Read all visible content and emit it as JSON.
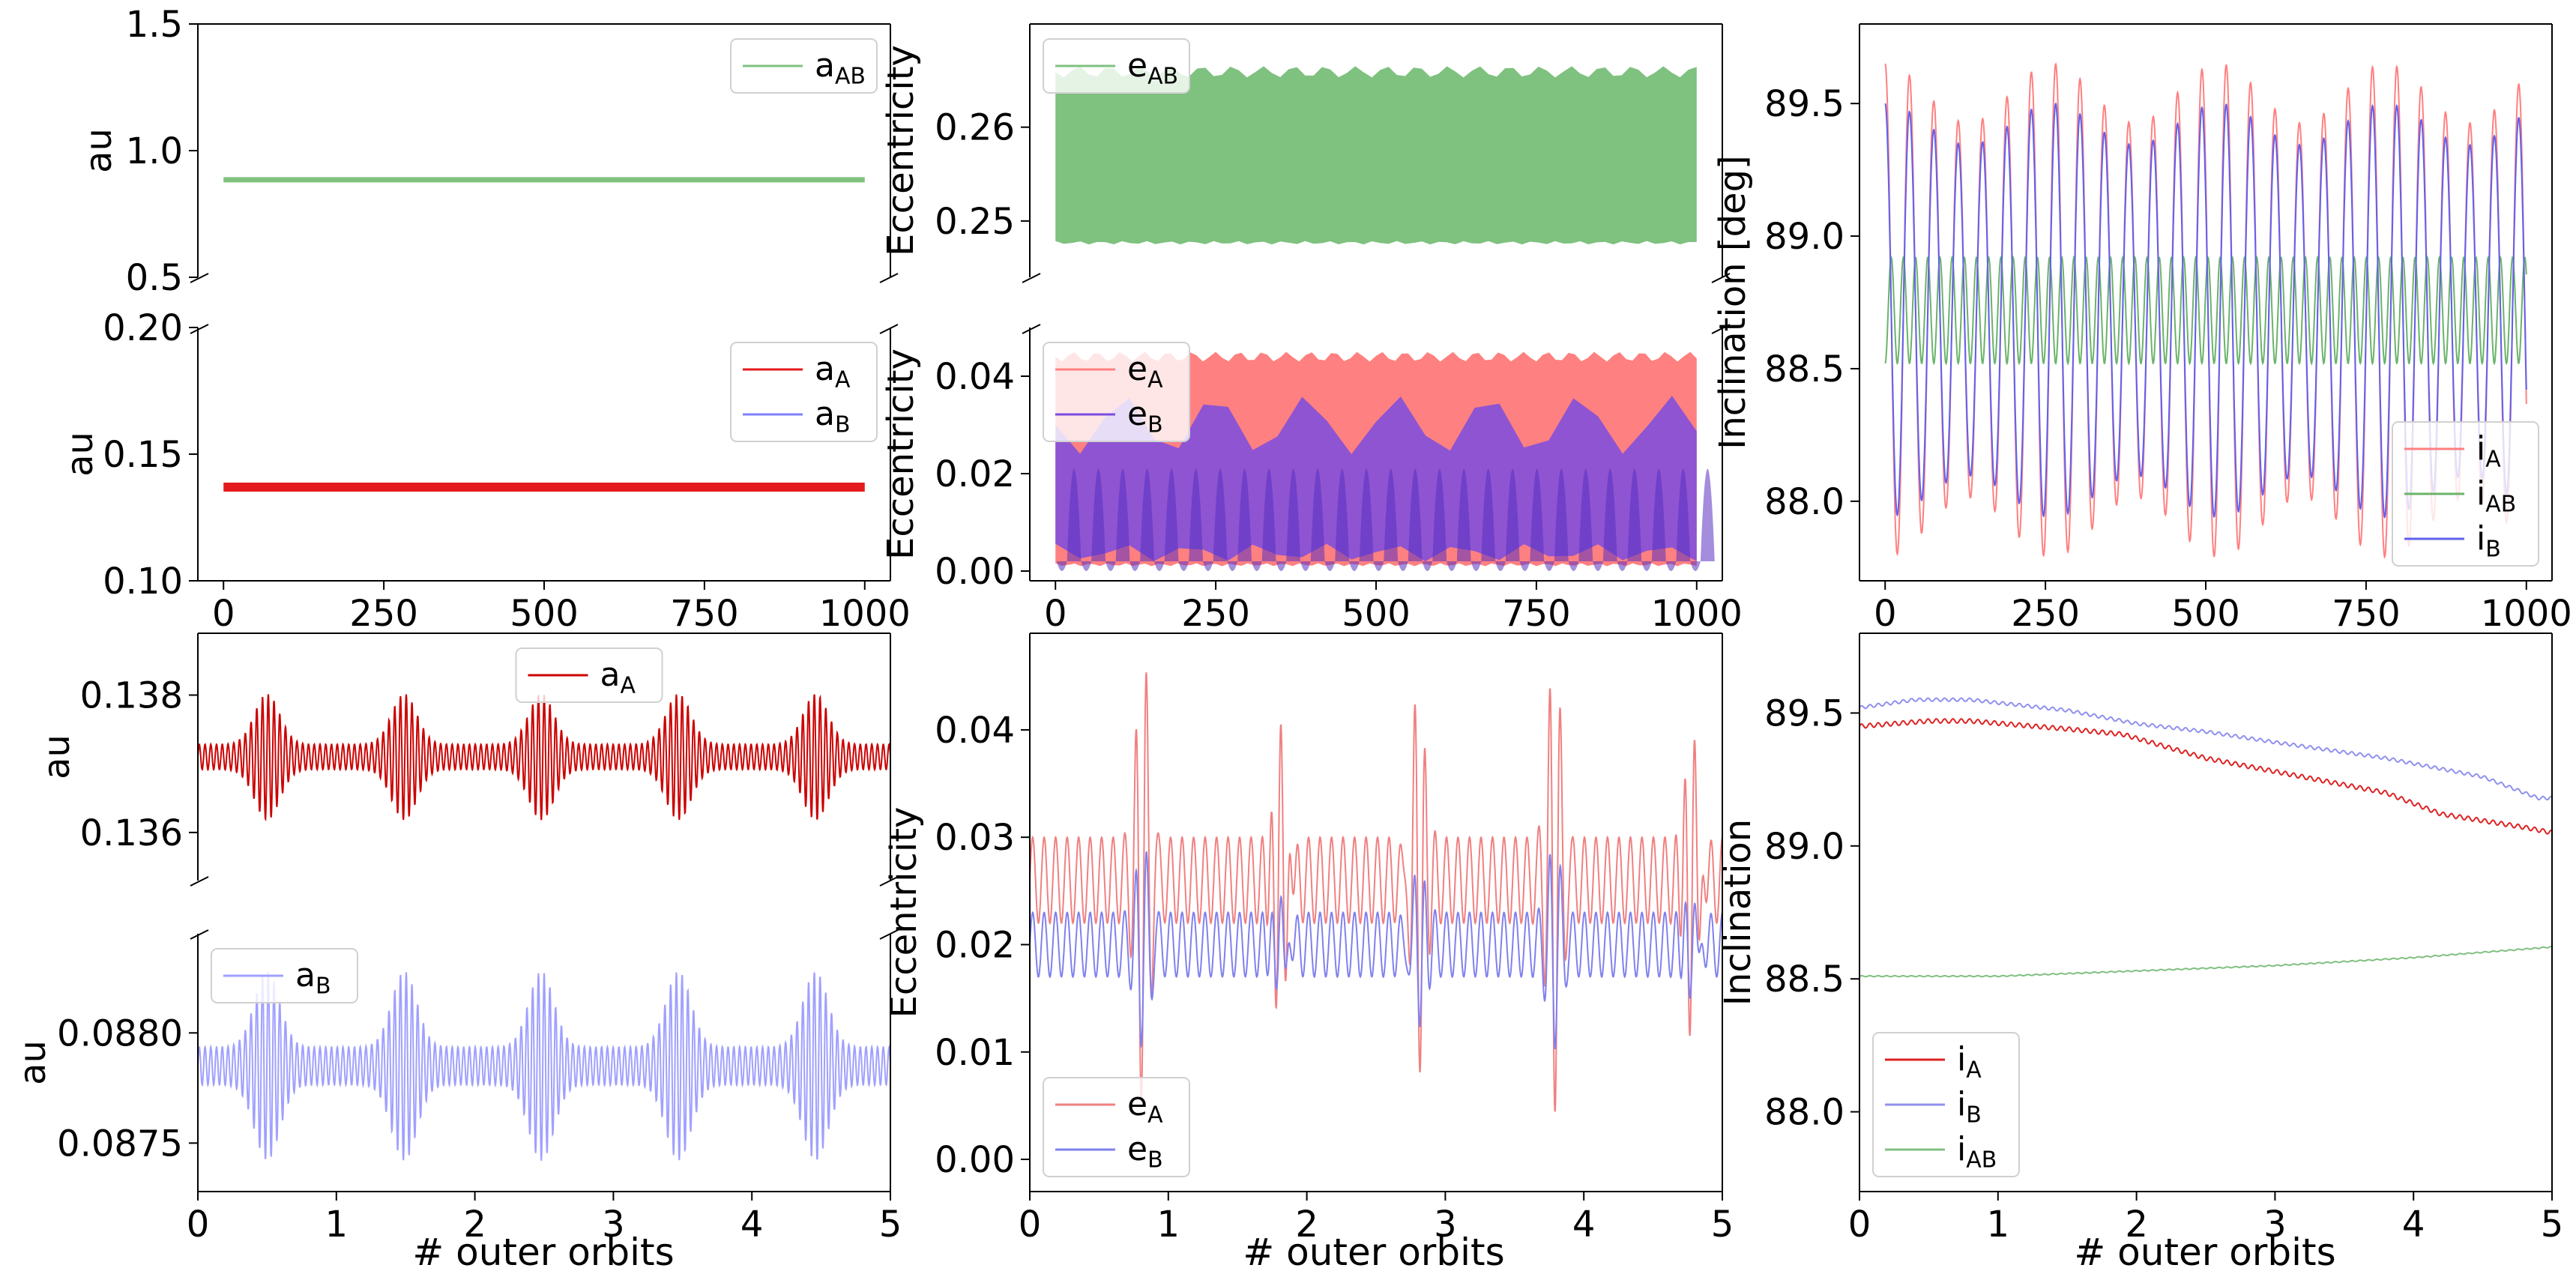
{
  "figure": {
    "xlabel": "# outer orbits"
  },
  "chart_data": [
    {
      "id": "a-top",
      "type": "line",
      "ylabel": "au",
      "xlim": [
        -40,
        1040
      ],
      "ylim": [
        0.5,
        1.5
      ],
      "yticks": [
        "0.5",
        "1.0",
        "1.5"
      ],
      "ytick_values": [
        0.5,
        1.0,
        1.5
      ],
      "xticks": [],
      "xtick_values": [],
      "series": [
        {
          "name": "a",
          "sub": "AB",
          "color": "#7fc17f",
          "x": [
            0,
            1000
          ],
          "y": [
            0.885,
            0.885
          ]
        }
      ],
      "legend": {
        "loc": "top-right"
      }
    },
    {
      "id": "a-bottom",
      "type": "line",
      "ylabel": "au",
      "xlim": [
        -40,
        1040
      ],
      "ylim": [
        0.1,
        0.2
      ],
      "yticks": [
        "0.10",
        "0.15",
        "0.20"
      ],
      "ytick_values": [
        0.1,
        0.15,
        0.2
      ],
      "xticks": [
        "0",
        "250",
        "500",
        "750",
        "1000"
      ],
      "xtick_values": [
        0,
        250,
        500,
        750,
        1000
      ],
      "series": [
        {
          "name": "a",
          "sub": "A",
          "color": "#e41a1c",
          "x": [
            0,
            1000
          ],
          "y": [
            0.137,
            0.137
          ]
        },
        {
          "name": "a",
          "sub": "B",
          "color": "#8080ff",
          "x": [],
          "y": []
        }
      ],
      "legend": {
        "loc": "top-right"
      }
    },
    {
      "id": "e-top",
      "type": "band",
      "ylabel": "Eccentricity",
      "xlim": [
        -40,
        1040
      ],
      "ylim": [
        0.244,
        0.271
      ],
      "yticks": [
        "0.25",
        "0.26"
      ],
      "ytick_values": [
        0.25,
        0.26
      ],
      "xticks": [],
      "xtick_values": [],
      "series": [
        {
          "name": "e",
          "sub": "AB",
          "color": "#7fc17f",
          "range": [
            0,
            1000
          ],
          "low": 0.2475,
          "high": 0.2665,
          "period": 13,
          "wobble": 0.0012
        }
      ],
      "legend": {
        "loc": "top-left"
      }
    },
    {
      "id": "e-bottom",
      "type": "band",
      "ylabel": "Eccentricity",
      "xlim": [
        -40,
        1040
      ],
      "ylim": [
        -0.002,
        0.05
      ],
      "yticks": [
        "0.00",
        "0.02",
        "0.04"
      ],
      "ytick_values": [
        0.0,
        0.02,
        0.04
      ],
      "xticks": [
        "0",
        "250",
        "500",
        "750",
        "1000"
      ],
      "xtick_values": [
        0,
        250,
        500,
        750,
        1000
      ],
      "series": [
        {
          "name": "e",
          "sub": "A",
          "color": "#ff8080",
          "range": [
            0,
            1000
          ],
          "low": 0.001,
          "high": 0.045,
          "period": 10,
          "wobble": 0.002
        },
        {
          "name": "e",
          "sub": "B",
          "color": "#7a4ce0",
          "range": [
            0,
            1000
          ],
          "low": 0.002,
          "high": 0.036,
          "period": 38,
          "wobble": 0.012
        }
      ],
      "legend": {
        "loc": "top-left"
      }
    },
    {
      "id": "incl-full",
      "type": "line",
      "ylabel": "Inclination [deg]",
      "xlim": [
        -40,
        1040
      ],
      "ylim": [
        87.7,
        89.8
      ],
      "yticks": [
        "88.0",
        "88.5",
        "89.0",
        "89.5"
      ],
      "ytick_values": [
        88.0,
        88.5,
        89.0,
        89.5
      ],
      "xticks": [
        "0",
        "250",
        "500",
        "750",
        "1000"
      ],
      "xtick_values": [
        0,
        250,
        500,
        750,
        1000
      ],
      "series": [
        {
          "name": "i",
          "sub": "A",
          "color": "#ff8080",
          "gen": {
            "kind": "osc",
            "x0": 0,
            "x1": 1000,
            "center": 88.72,
            "amp": 0.93,
            "period": 38,
            "beat": 260,
            "depth": 0.12,
            "phase": 1.57
          }
        },
        {
          "name": "i",
          "sub": "AB",
          "color": "#6ab36a",
          "gen": {
            "kind": "osc",
            "x0": 0,
            "x1": 1000,
            "center": 88.72,
            "amp": 0.2,
            "period": 19,
            "beat": 0,
            "depth": 0,
            "phase": -1.57
          }
        },
        {
          "name": "i",
          "sub": "B",
          "color": "#6060ee",
          "gen": {
            "kind": "osc",
            "x0": 0,
            "x1": 1000,
            "center": 88.72,
            "amp": 0.78,
            "period": 38,
            "beat": 260,
            "depth": 0.1,
            "phase": 1.57
          }
        }
      ],
      "legend": {
        "loc": "bottom-right"
      }
    },
    {
      "id": "aA-zoom",
      "type": "line",
      "ylabel": "au",
      "xlim": [
        0,
        5
      ],
      "ylim": [
        0.1353,
        0.1389
      ],
      "yticks": [
        "0.136",
        "0.138"
      ],
      "ytick_values": [
        0.136,
        0.138
      ],
      "xticks": [],
      "xtick_values": [],
      "series": [
        {
          "name": "a",
          "sub": "A",
          "color": "#cc0000",
          "gen": {
            "kind": "beat",
            "x0": 0,
            "x1": 5,
            "center": 0.1371,
            "amp": 0.00092,
            "period": 0.0415,
            "beat": 0.99,
            "floor": 0.2,
            "phase": 0.5
          }
        }
      ],
      "legend": {
        "loc": "top-center"
      }
    },
    {
      "id": "aB-zoom",
      "type": "line",
      "ylabel": "au",
      "xlim": [
        0,
        5
      ],
      "ylim": [
        0.08728,
        0.08845
      ],
      "yticks": [
        "0.0875",
        "0.0880"
      ],
      "ytick_values": [
        0.0875,
        0.088
      ],
      "xticks": [
        "0",
        "1",
        "2",
        "3",
        "4",
        "5"
      ],
      "xtick_values": [
        0,
        1,
        2,
        3,
        4,
        5
      ],
      "series": [
        {
          "name": "a",
          "sub": "B",
          "color": "#a0a0ff",
          "gen": {
            "kind": "beat",
            "x0": 0,
            "x1": 5,
            "center": 0.08785,
            "amp": 0.00043,
            "period": 0.0415,
            "beat": 0.99,
            "floor": 0.2,
            "phase": 0.5
          }
        }
      ],
      "legend": {
        "loc": "top-left"
      }
    },
    {
      "id": "e-zoom",
      "type": "line",
      "ylabel": "Eccentricity",
      "xlim": [
        0,
        5
      ],
      "ylim": [
        -0.003,
        0.049
      ],
      "yticks": [
        "0.00",
        "0.01",
        "0.02",
        "0.03",
        "0.04"
      ],
      "ytick_values": [
        0.0,
        0.01,
        0.02,
        0.03,
        0.04
      ],
      "xticks": [
        "0",
        "1",
        "2",
        "3",
        "4",
        "5"
      ],
      "xtick_values": [
        0,
        1,
        2,
        3,
        4,
        5
      ],
      "series": [
        {
          "name": "e",
          "sub": "A",
          "color": "#f08080",
          "gen": {
            "kind": "ecc",
            "x0": 0,
            "x1": 5,
            "center": 0.026,
            "amp": 0.004,
            "period": 0.083,
            "beat": 0.99,
            "spike": 0.018,
            "phase": 0.82
          }
        },
        {
          "name": "e",
          "sub": "B",
          "color": "#8080ee",
          "gen": {
            "kind": "ecc",
            "x0": 0,
            "x1": 5,
            "center": 0.02,
            "amp": 0.003,
            "period": 0.083,
            "beat": 0.99,
            "spike": 0.007,
            "phase": 0.82
          }
        }
      ],
      "legend": {
        "loc": "bottom-left"
      }
    },
    {
      "id": "incl-zoom",
      "type": "line",
      "ylabel": "Inclination",
      "xlim": [
        0,
        5
      ],
      "ylim": [
        87.7,
        89.8
      ],
      "yticks": [
        "88.0",
        "88.5",
        "89.0",
        "89.5"
      ],
      "ytick_values": [
        88.0,
        88.5,
        89.0,
        89.5
      ],
      "xticks": [
        "0",
        "1",
        "2",
        "3",
        "4",
        "5"
      ],
      "xtick_values": [
        0,
        1,
        2,
        3,
        4,
        5
      ],
      "series": [
        {
          "name": "i",
          "sub": "A",
          "color": "#dd2222",
          "gen": {
            "kind": "pts",
            "x0": 0,
            "x1": 5,
            "pts": [
              [
                0,
                89.45
              ],
              [
                0.5,
                89.47
              ],
              [
                0.8,
                89.47
              ],
              [
                1.5,
                89.44
              ],
              [
                1.9,
                89.42
              ],
              [
                2.5,
                89.33
              ],
              [
                3.0,
                89.28
              ],
              [
                3.8,
                89.2
              ],
              [
                4.2,
                89.12
              ],
              [
                4.8,
                89.07
              ],
              [
                5.0,
                89.05
              ]
            ],
            "amp": 0.008,
            "period": 0.06
          }
        },
        {
          "name": "i",
          "sub": "B",
          "color": "#9090ee",
          "gen": {
            "kind": "pts",
            "x0": 0,
            "x1": 5,
            "pts": [
              [
                0,
                89.52
              ],
              [
                0.4,
                89.55
              ],
              [
                0.8,
                89.55
              ],
              [
                1.5,
                89.51
              ],
              [
                2.0,
                89.46
              ],
              [
                2.5,
                89.43
              ],
              [
                3.0,
                89.39
              ],
              [
                3.8,
                89.33
              ],
              [
                4.5,
                89.26
              ],
              [
                4.9,
                89.18
              ],
              [
                5.0,
                89.18
              ]
            ],
            "amp": 0.006,
            "period": 0.06
          }
        },
        {
          "name": "i",
          "sub": "AB",
          "color": "#80c080",
          "gen": {
            "kind": "pts",
            "x0": 0,
            "x1": 5,
            "pts": [
              [
                0,
                88.51
              ],
              [
                1.0,
                88.51
              ],
              [
                2.0,
                88.53
              ],
              [
                3.0,
                88.55
              ],
              [
                4.0,
                88.58
              ],
              [
                5.0,
                88.62
              ]
            ],
            "amp": 0.002,
            "period": 0.06
          }
        }
      ],
      "legend": {
        "loc": "bottom-left"
      }
    }
  ]
}
